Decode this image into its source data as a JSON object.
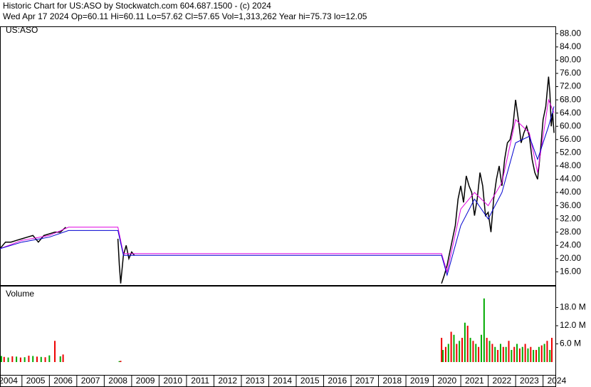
{
  "chart_data": [
    {
      "type": "line",
      "title": "Historic Chart for US:ASO by Stockwatch.com 604.687.1500 - (c) 2024",
      "subtitle": "Wed Apr 17 2024  Op=60.11  Hi=60.11  Lo=57.62  Cl=57.65  Vol=1,313,262  Year hi=75.73  lo=12.05",
      "label": "US:ASO",
      "xlim": [
        2004.2,
        2024.45
      ],
      "ylim": [
        12,
        90
      ],
      "yticks": [
        {
          "value": 16,
          "label": "16.00"
        },
        {
          "value": 20,
          "label": "20.00"
        },
        {
          "value": 24,
          "label": "24.00"
        },
        {
          "value": 28,
          "label": "28.00"
        },
        {
          "value": 32,
          "label": "32.00"
        },
        {
          "value": 36,
          "label": "36.00"
        },
        {
          "value": 40,
          "label": "40.00"
        },
        {
          "value": 44,
          "label": "44.00"
        },
        {
          "value": 48,
          "label": "48.00"
        },
        {
          "value": 52,
          "label": "52.00"
        },
        {
          "value": 56,
          "label": "56.00"
        },
        {
          "value": 60,
          "label": "60.00"
        },
        {
          "value": 64,
          "label": "64.00"
        },
        {
          "value": 68,
          "label": "68.00"
        },
        {
          "value": 72,
          "label": "72.00"
        },
        {
          "value": 76,
          "label": "76.00"
        },
        {
          "value": 80,
          "label": "80.00"
        },
        {
          "value": 84,
          "label": "84.00"
        },
        {
          "value": 88,
          "label": "88.00"
        }
      ],
      "series": [
        {
          "color": "#000000",
          "x": [
            2004.2,
            2004.4,
            2004.6,
            2004.8,
            2005.0,
            2005.2,
            2005.4,
            2005.6,
            2005.8,
            2006.0,
            2006.2,
            2006.4,
            2006.6,
            2007.5,
            2008.5,
            2008.55,
            2008.6,
            2008.7,
            2008.8,
            2008.9,
            2009.0,
            2009.1,
            2015.0,
            2020.3,
            2020.4,
            2020.5,
            2020.6,
            2020.8,
            2020.9,
            2021.0,
            2021.1,
            2021.2,
            2021.3,
            2021.4,
            2021.5,
            2021.6,
            2021.7,
            2021.8,
            2021.9,
            2022.0,
            2022.1,
            2022.2,
            2022.3,
            2022.4,
            2022.5,
            2022.6,
            2022.7,
            2022.8,
            2022.9,
            2023.0,
            2023.1,
            2023.2,
            2023.3,
            2023.4,
            2023.5,
            2023.6,
            2023.7,
            2023.8,
            2023.9,
            2024.0,
            2024.1,
            2024.2,
            2024.25,
            2024.3,
            2024.35,
            2024.4
          ],
          "values": [
            23,
            25,
            25,
            25.5,
            26,
            26.5,
            27,
            25,
            27,
            27.5,
            28,
            28,
            29.5,
            null,
            26,
            18,
            12.5,
            21,
            24,
            20,
            22,
            21,
            null,
            12.5,
            15,
            18,
            22,
            30,
            38,
            42,
            37,
            45,
            42,
            40,
            33,
            38,
            46,
            42,
            33,
            34,
            28,
            38,
            44,
            48,
            42,
            50,
            55,
            56,
            60,
            68,
            62,
            55,
            58,
            60,
            57,
            50,
            46,
            44,
            52,
            62,
            66,
            75,
            70,
            60,
            64,
            58
          ]
        },
        {
          "color": "#e000e0",
          "x": [
            2004.2,
            2005.0,
            2006.0,
            2006.7,
            2008.5,
            2008.7,
            2020.3,
            2020.5,
            2021.0,
            2021.5,
            2022.0,
            2022.5,
            2023.0,
            2023.5,
            2023.8,
            2024.2,
            2024.4
          ],
          "values": [
            23,
            25.5,
            27,
            29.5,
            29.5,
            21.5,
            21.5,
            16,
            35,
            40,
            36,
            43,
            62,
            58,
            46,
            68,
            64
          ]
        },
        {
          "color": "#0000d0",
          "x": [
            2004.2,
            2005.0,
            2006.0,
            2006.7,
            2008.5,
            2008.7,
            2009.1,
            2020.3,
            2020.5,
            2021.0,
            2021.5,
            2022.0,
            2022.5,
            2023.0,
            2023.5,
            2023.8,
            2024.2,
            2024.4
          ],
          "values": [
            23,
            25,
            26.5,
            28.5,
            28.5,
            21,
            21,
            21,
            15,
            30,
            38,
            32,
            40,
            55,
            57,
            50,
            60,
            66
          ]
        }
      ]
    },
    {
      "type": "bar",
      "label": "Volume",
      "xlim": [
        2004.2,
        2024.45
      ],
      "xticks": [
        2004,
        2005,
        2006,
        2007,
        2008,
        2009,
        2010,
        2011,
        2012,
        2013,
        2014,
        2015,
        2016,
        2017,
        2018,
        2019,
        2020,
        2021,
        2022,
        2023,
        2024
      ],
      "ylim": [
        0,
        24000000
      ],
      "yticks": [
        {
          "value": 6000000,
          "label": "6.0 M"
        },
        {
          "value": 12000000,
          "label": "12.0 M"
        },
        {
          "value": 18000000,
          "label": "18.0 M"
        }
      ],
      "series": [
        {
          "color": "#00aa00",
          "x": [
            2004.25,
            2004.5,
            2004.8,
            2005.1,
            2005.4,
            2005.7,
            2006.0,
            2006.4,
            2008.55,
            2020.35,
            2020.55,
            2020.75,
            2020.95,
            2021.15,
            2021.35,
            2021.55,
            2021.75,
            2021.85,
            2022.05,
            2022.25,
            2022.45,
            2022.65,
            2022.85,
            2023.05,
            2023.25,
            2023.45,
            2023.65,
            2023.85,
            2024.05,
            2024.25
          ],
          "values": [
            2000000,
            1500000,
            1800000,
            1600000,
            2000000,
            1700000,
            2200000,
            1900000,
            300000,
            4000000,
            6000000,
            9000000,
            7000000,
            13000000,
            8000000,
            6000000,
            9000000,
            21000000,
            7000000,
            5000000,
            6000000,
            5000000,
            4000000,
            6000000,
            5000000,
            4500000,
            4000000,
            5000000,
            6000000,
            4000000
          ]
        },
        {
          "color": "#ee0000",
          "x": [
            2004.35,
            2004.65,
            2004.95,
            2005.25,
            2005.55,
            2005.85,
            2006.2,
            2006.5,
            2008.6,
            2020.3,
            2020.45,
            2020.65,
            2020.85,
            2021.05,
            2021.25,
            2021.45,
            2021.65,
            2021.95,
            2022.15,
            2022.35,
            2022.55,
            2022.75,
            2022.95,
            2023.15,
            2023.35,
            2023.55,
            2023.75,
            2023.95,
            2024.15,
            2024.32
          ],
          "values": [
            1700000,
            1900000,
            1500000,
            2100000,
            1800000,
            1600000,
            7000000,
            2500000,
            400000,
            8000000,
            5000000,
            10000000,
            6000000,
            8000000,
            12000000,
            7000000,
            5000000,
            8000000,
            6000000,
            4000000,
            5000000,
            7000000,
            5000000,
            4500000,
            6000000,
            5000000,
            4000000,
            5500000,
            7000000,
            8000000
          ]
        }
      ]
    }
  ]
}
